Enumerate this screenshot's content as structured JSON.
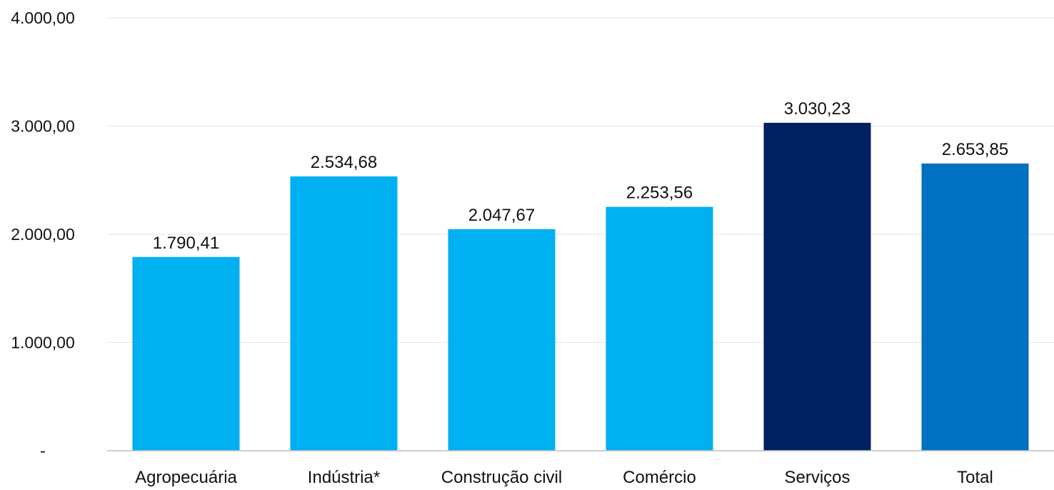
{
  "chart_data": {
    "type": "bar",
    "categories": [
      "Agropecuária",
      "Indústria*",
      "Construção civil",
      "Comércio",
      "Serviços",
      "Total"
    ],
    "values": [
      1790.41,
      2534.68,
      2047.67,
      2253.56,
      3030.23,
      2653.85
    ],
    "value_labels": [
      "1.790,41",
      "2.534,68",
      "2.047,67",
      "2.253,56",
      "3.030,23",
      "2.653,85"
    ],
    "bar_colors": [
      "#00B0F0",
      "#00B0F0",
      "#00B0F0",
      "#00B0F0",
      "#002060",
      "#0070C0"
    ],
    "ylim": [
      0,
      4000
    ],
    "yticks": [
      0,
      1000,
      2000,
      3000,
      4000
    ],
    "ytick_labels": [
      "-",
      "1.000,00",
      "2.000,00",
      "3.000,00",
      "4.000,00"
    ],
    "grid": true,
    "gridline_color": "#E6E6E6",
    "axis_color": "#BFBFBF",
    "legend": "none"
  }
}
